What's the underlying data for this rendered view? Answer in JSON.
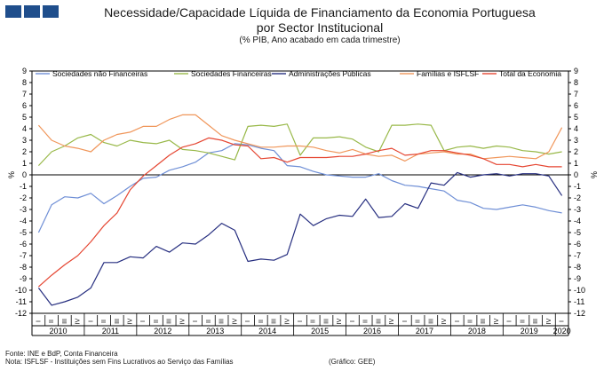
{
  "header": {
    "title_line1": "Necessidade/Capacidade Líquida de Financiamento da Economia Portuguesa",
    "title_line2": "por Sector Institucional",
    "subtitle": "(% PIB, Ano acabado em cada trimestre)"
  },
  "footer": {
    "source": "Fonte: INE e BdP, Conta Financeira",
    "note": "Nota: ISFLSF - Instituições sem Fins Lucrativos ao Serviço das Famílias",
    "credit": "(Gráfico: GEE)"
  },
  "chart_data": {
    "type": "line",
    "ylim": [
      -12,
      9
    ],
    "yticks": [
      9,
      8,
      7,
      6,
      5,
      4,
      3,
      2,
      1,
      0,
      -1,
      -2,
      -3,
      -4,
      -5,
      -6,
      -7,
      -8,
      -9,
      -10,
      -11,
      -12
    ],
    "ylabel_left": "%",
    "ylabel_right": "%",
    "grid": false,
    "legend_position": "top",
    "quarter_labels": [
      "I",
      "II",
      "III",
      "IV"
    ],
    "x_start": "2010 I",
    "years": [
      "2010",
      "2011",
      "2012",
      "2013",
      "2014",
      "2015",
      "2016",
      "2017",
      "2018",
      "2019",
      "2020"
    ],
    "x_count": 41,
    "series": [
      {
        "name": "Sociedades não Financeiras",
        "color": "#6f8fd6",
        "values": [
          -5.0,
          -2.6,
          -1.9,
          -2.0,
          -1.6,
          -2.5,
          -1.8,
          -1.0,
          -0.3,
          -0.2,
          0.4,
          0.7,
          1.1,
          1.9,
          2.1,
          2.7,
          2.6,
          2.3,
          2.1,
          0.8,
          0.7,
          0.3,
          0.0,
          -0.1,
          -0.2,
          -0.2,
          0.1,
          -0.5,
          -0.9,
          -1.0,
          -1.2,
          -1.4,
          -2.2,
          -2.4,
          -2.9,
          -3.0,
          -2.8,
          -2.6,
          -2.8,
          -3.1,
          -3.3
        ]
      },
      {
        "name": "Sociedades Financeiras",
        "color": "#98b848",
        "values": [
          0.8,
          2.0,
          2.5,
          3.2,
          3.5,
          2.8,
          2.5,
          3.0,
          2.8,
          2.7,
          3.0,
          2.2,
          2.1,
          1.9,
          1.6,
          1.3,
          4.2,
          4.3,
          4.2,
          4.4,
          1.7,
          3.2,
          3.2,
          3.3,
          3.1,
          2.4,
          2.0,
          4.3,
          4.3,
          4.4,
          4.3,
          2.1,
          2.4,
          2.5,
          2.3,
          2.5,
          2.4,
          2.1,
          2.0,
          1.8,
          2.0
        ]
      },
      {
        "name": "Administrações Públicas",
        "color": "#272f80",
        "values": [
          -9.8,
          -11.3,
          -11.0,
          -10.6,
          -9.8,
          -7.6,
          -7.6,
          -7.1,
          -7.2,
          -6.2,
          -6.7,
          -5.9,
          -6.0,
          -5.2,
          -4.2,
          -4.8,
          -7.5,
          -7.3,
          -7.4,
          -6.9,
          -3.4,
          -4.4,
          -3.8,
          -3.5,
          -3.6,
          -2.1,
          -3.7,
          -3.6,
          -2.5,
          -2.9,
          -0.7,
          -0.9,
          0.2,
          -0.2,
          0.0,
          0.1,
          -0.1,
          0.1,
          0.1,
          -0.1,
          -1.8
        ]
      },
      {
        "name": "Famílias e ISFLSF",
        "color": "#f0965a",
        "values": [
          4.3,
          3.0,
          2.5,
          2.3,
          2.0,
          3.0,
          3.5,
          3.7,
          4.2,
          4.2,
          4.8,
          5.2,
          5.2,
          4.3,
          3.4,
          3.0,
          2.7,
          2.4,
          2.4,
          2.5,
          2.5,
          2.4,
          2.1,
          1.9,
          2.2,
          1.8,
          1.6,
          1.7,
          1.2,
          1.8,
          1.9,
          2.0,
          1.8,
          1.8,
          1.4,
          1.5,
          1.6,
          1.5,
          1.4,
          2.0,
          4.1
        ]
      },
      {
        "name": "Total da Economia",
        "color": "#e54632",
        "values": [
          -9.7,
          -8.7,
          -7.8,
          -7.0,
          -5.8,
          -4.4,
          -3.3,
          -1.3,
          -0.1,
          0.8,
          1.7,
          2.4,
          2.7,
          3.2,
          3.0,
          2.6,
          2.5,
          1.4,
          1.5,
          1.1,
          1.5,
          1.5,
          1.5,
          1.6,
          1.6,
          1.8,
          2.1,
          2.3,
          1.7,
          1.8,
          2.1,
          2.1,
          1.9,
          1.7,
          1.4,
          0.9,
          0.9,
          0.7,
          0.9,
          0.7,
          0.7
        ]
      }
    ]
  }
}
